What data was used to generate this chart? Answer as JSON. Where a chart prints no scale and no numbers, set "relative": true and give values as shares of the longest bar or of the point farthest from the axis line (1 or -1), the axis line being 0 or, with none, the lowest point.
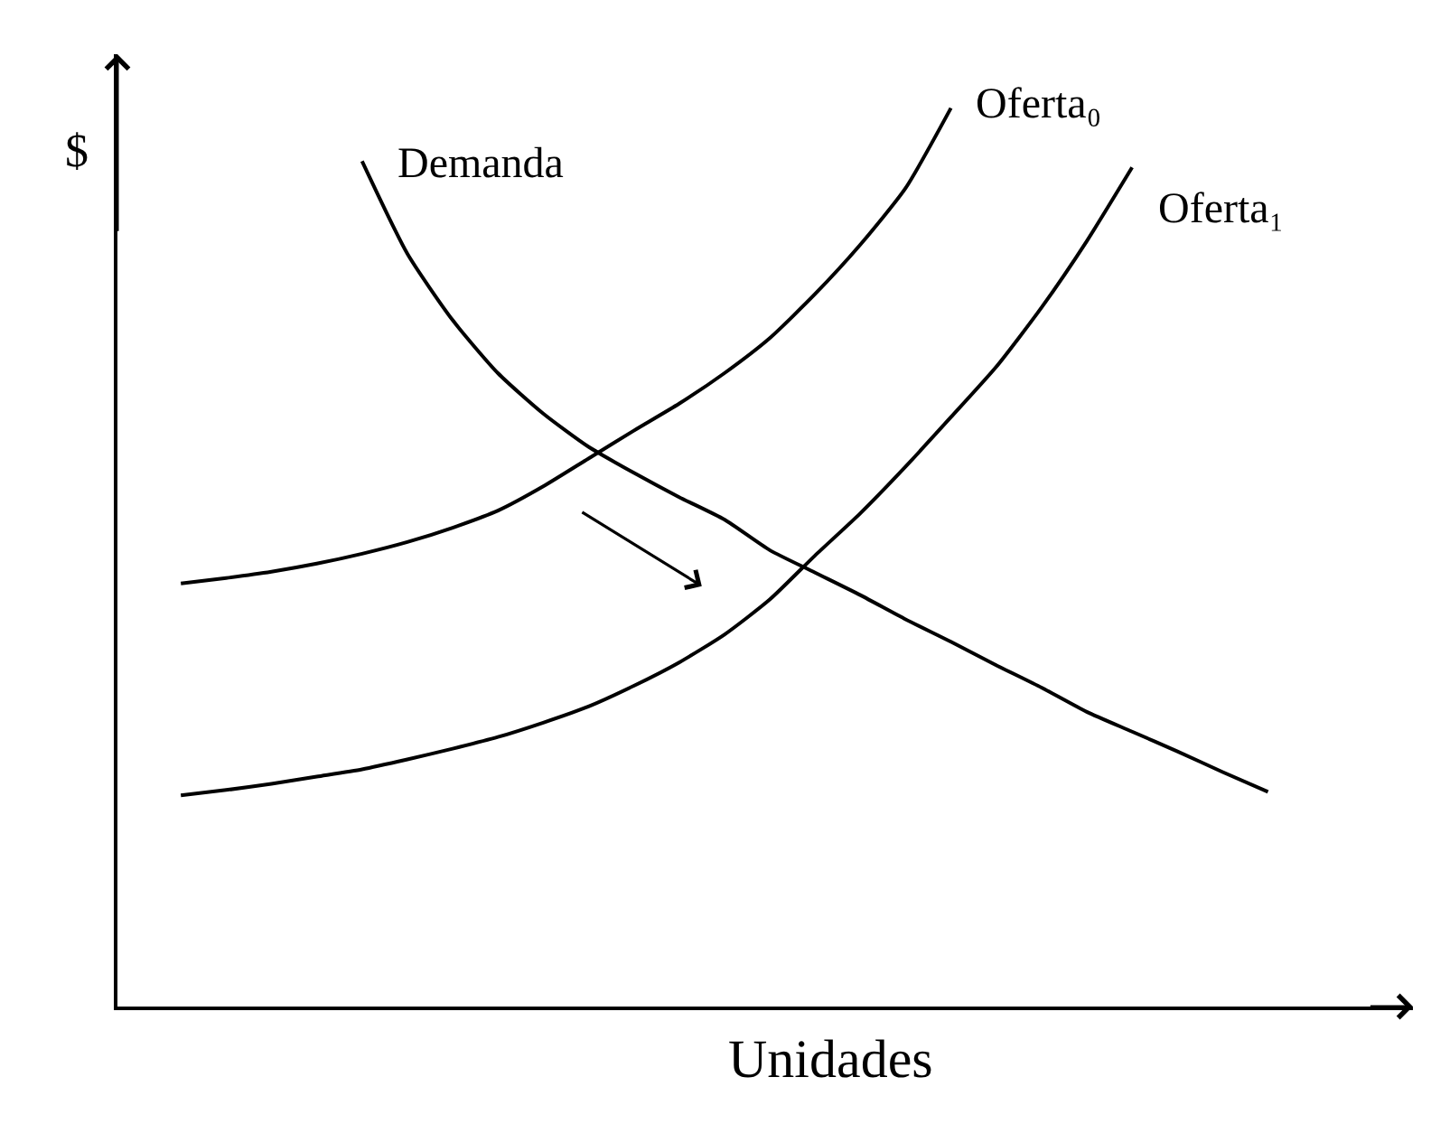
{
  "chart_data": {
    "type": "line",
    "relative": true,
    "xlabel": "Unidades",
    "ylabel": "$",
    "legend": false,
    "marker": "none",
    "line_style": "solid",
    "categories": [
      null,
      null,
      null,
      null,
      null,
      null,
      null,
      null,
      null,
      null,
      null,
      null,
      null,
      null,
      null,
      null,
      null,
      null,
      null,
      null,
      null,
      null,
      null,
      null,
      null
    ],
    "series": [
      {
        "name": "Demanda",
        "color": "#000000",
        "values": [
          null,
          null,
          null,
          null,
          0.941,
          0.838,
          0.764,
          0.705,
          0.66,
          0.623,
          0.594,
          0.567,
          0.542,
          0.508,
          0.483,
          0.458,
          0.431,
          0.406,
          0.38,
          0.355,
          0.328,
          0.306,
          0.284,
          0.261,
          0.239
        ]
      },
      {
        "name": "Oferta₀",
        "color": "#000000",
        "values": [
          0.471,
          0.477,
          0.484,
          0.493,
          0.504,
          0.517,
          0.533,
          0.552,
          0.579,
          0.61,
          0.641,
          0.671,
          0.705,
          0.744,
          0.793,
          0.848,
          0.911,
          1,
          null,
          null,
          null,
          null,
          null,
          null,
          null
        ]
      },
      {
        "name": "Oferta₁",
        "color": "#000000",
        "values": [
          0.235,
          0.241,
          0.248,
          0.256,
          0.264,
          0.275,
          0.287,
          0.3,
          0.316,
          0.334,
          0.357,
          0.383,
          0.414,
          0.453,
          0.502,
          0.549,
          0.601,
          0.656,
          0.712,
          0.778,
          0.852,
          0.934,
          null,
          null,
          null
        ]
      }
    ]
  }
}
